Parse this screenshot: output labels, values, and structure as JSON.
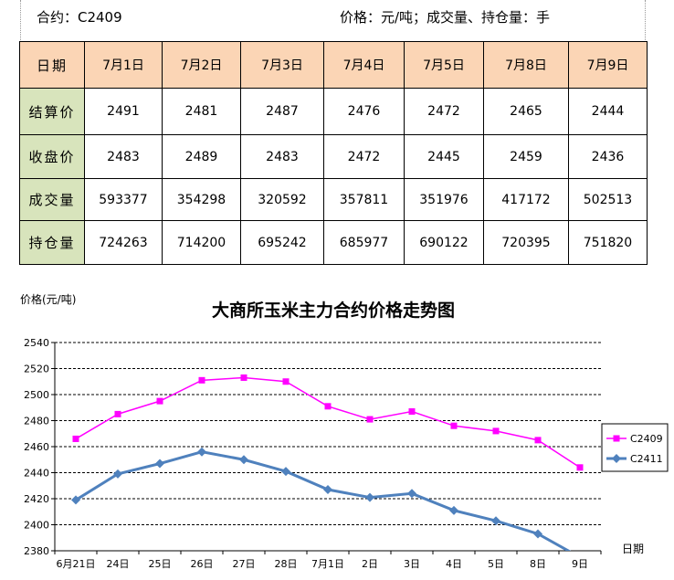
{
  "header": {
    "contract": "合约：C2409",
    "units": "价格：元/吨；成交量、持仓量：手"
  },
  "table": {
    "corner": "日期",
    "dates": [
      "7月1日",
      "7月2日",
      "7月3日",
      "7月4日",
      "7月5日",
      "7月8日",
      "7月9日"
    ],
    "rows": [
      {
        "label": "结算价",
        "values": [
          "2491",
          "2481",
          "2487",
          "2476",
          "2472",
          "2465",
          "2444"
        ]
      },
      {
        "label": "收盘价",
        "values": [
          "2483",
          "2489",
          "2483",
          "2472",
          "2445",
          "2459",
          "2436"
        ]
      },
      {
        "label": "成交量",
        "values": [
          "593377",
          "354298",
          "320592",
          "357811",
          "351976",
          "417172",
          "502513"
        ]
      },
      {
        "label": "持仓量",
        "values": [
          "724263",
          "714200",
          "695242",
          "685977",
          "690122",
          "720395",
          "751820"
        ]
      }
    ]
  },
  "chart_data": {
    "type": "line",
    "title": "大商所玉米主力合约价格走势图",
    "ylabel": "价格(元/吨)",
    "xlabel": "日期",
    "categories": [
      "6月21日",
      "24日",
      "25日",
      "26日",
      "27日",
      "28日",
      "7月1日",
      "2日",
      "3日",
      "4日",
      "5日",
      "8日",
      "9日"
    ],
    "ylim": [
      2380,
      2540
    ],
    "yticks": [
      2380,
      2400,
      2420,
      2440,
      2460,
      2480,
      2500,
      2520,
      2540
    ],
    "grid": "horizontal dashed",
    "legend_position": "right",
    "series": [
      {
        "name": "C2409",
        "color": "#ff00ff",
        "marker": "square",
        "values": [
          2466,
          2485,
          2495,
          2511,
          2513,
          2510,
          2491,
          2481,
          2487,
          2476,
          2472,
          2465,
          2444
        ]
      },
      {
        "name": "C2411",
        "color": "#4f81bd",
        "marker": "diamond",
        "values": [
          2419,
          2439,
          2447,
          2456,
          2450,
          2441,
          2427,
          2421,
          2424,
          2411,
          2403,
          2393,
          2375
        ]
      }
    ]
  }
}
